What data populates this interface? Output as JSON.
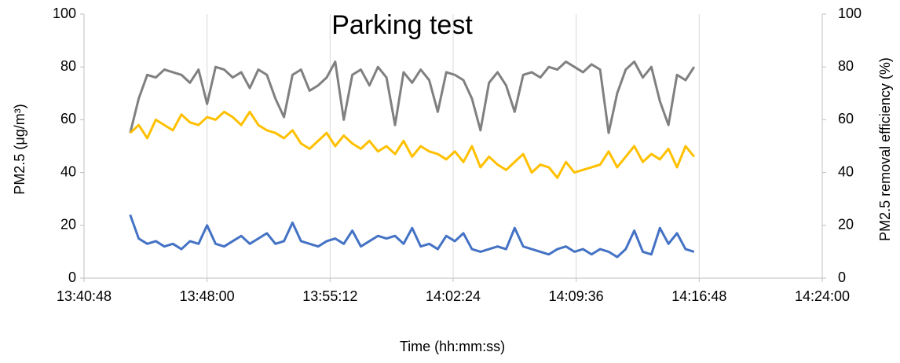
{
  "chart_data": {
    "type": "line",
    "title": "Parking test",
    "xlabel": "Time (hh:mm:ss)",
    "ylabel": "PM2.5 (μg/m³)",
    "y2label": "PM2.5 removal efficiency (%)",
    "x": [
      49410,
      49440,
      49470,
      49500,
      49530,
      49560,
      49590,
      49620,
      49650,
      49680,
      49710,
      49740,
      49770,
      49800,
      49830,
      49860,
      49890,
      49920,
      49950,
      49980,
      50010,
      50040,
      50070,
      50100,
      50130,
      50160,
      50190,
      50220,
      50250,
      50280,
      50310,
      50340,
      50370,
      50400,
      50430,
      50460,
      50490,
      50520,
      50550,
      50580,
      50610,
      50640,
      50670,
      50700,
      50730,
      50760,
      50790,
      50820,
      50850,
      50880,
      50910,
      50940,
      50970,
      51000,
      51030,
      51060,
      51090,
      51120,
      51150,
      51180,
      51210,
      51240,
      51270,
      51300,
      51330,
      51360,
      51390
    ],
    "series": [
      {
        "color": "#808080",
        "axis": "y2",
        "values": [
          55,
          68,
          77,
          76,
          79,
          78,
          77,
          74,
          79,
          66,
          80,
          79,
          76,
          78,
          72,
          79,
          77,
          68,
          61,
          77,
          79,
          71,
          73,
          76,
          82,
          60,
          77,
          79,
          73,
          80,
          76,
          58,
          78,
          74,
          79,
          75,
          63,
          78,
          77,
          75,
          68,
          56,
          74,
          78,
          73,
          63,
          77,
          78,
          76,
          80,
          79,
          82,
          80,
          78,
          81,
          79,
          55,
          70,
          79,
          82,
          76,
          80,
          67,
          58,
          77,
          75,
          80
        ]
      },
      {
        "color": "#ffc000",
        "values": [
          55,
          58,
          53,
          60,
          58,
          56,
          62,
          59,
          58,
          61,
          60,
          63,
          61,
          58,
          63,
          58,
          56,
          55,
          53,
          56,
          51,
          49,
          52,
          55,
          50,
          54,
          51,
          49,
          52,
          48,
          50,
          47,
          52,
          46,
          50,
          48,
          47,
          45,
          48,
          44,
          50,
          42,
          46,
          43,
          41,
          44,
          47,
          40,
          43,
          42,
          38,
          44,
          40,
          41,
          42,
          43,
          48,
          42,
          46,
          50,
          44,
          47,
          45,
          49,
          42,
          50,
          46
        ]
      },
      {
        "color": "#4472c4",
        "values": [
          24,
          15,
          13,
          14,
          12,
          13,
          11,
          14,
          13,
          20,
          13,
          12,
          14,
          16,
          13,
          15,
          17,
          13,
          14,
          21,
          14,
          13,
          12,
          14,
          15,
          13,
          18,
          12,
          14,
          16,
          15,
          16,
          13,
          19,
          12,
          13,
          11,
          16,
          14,
          17,
          11,
          10,
          11,
          12,
          11,
          19,
          12,
          11,
          10,
          9,
          11,
          12,
          10,
          11,
          9,
          11,
          10,
          8,
          11,
          18,
          10,
          9,
          19,
          13,
          17,
          11,
          10
        ]
      }
    ],
    "xlim": [
      49248,
      51840
    ],
    "xticks": [
      {
        "value": 49248,
        "label": "13:40:48"
      },
      {
        "value": 49680,
        "label": "13:48:00"
      },
      {
        "value": 50112,
        "label": "13:55:12"
      },
      {
        "value": 50544,
        "label": "14:02:24"
      },
      {
        "value": 50976,
        "label": "14:09:36"
      },
      {
        "value": 51408,
        "label": "14:16:48"
      },
      {
        "value": 51840,
        "label": "14:24:00"
      }
    ],
    "ylim": [
      0,
      100
    ],
    "yticks": [
      0,
      20,
      40,
      60,
      80,
      100
    ],
    "y2lim": [
      0,
      100
    ],
    "y2ticks": [
      0,
      20,
      40,
      60,
      80,
      100
    ],
    "grid": "x"
  }
}
